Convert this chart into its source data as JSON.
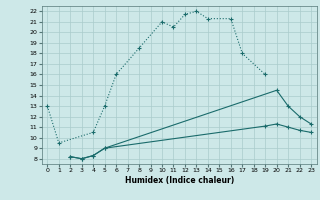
{
  "xlabel": "Humidex (Indice chaleur)",
  "bg_color": "#cde8e8",
  "grid_color": "#aacccc",
  "line_color": "#1a6b6b",
  "xlim": [
    -0.5,
    23.5
  ],
  "ylim": [
    7.5,
    22.5
  ],
  "xticks": [
    0,
    1,
    2,
    3,
    4,
    5,
    6,
    7,
    8,
    9,
    10,
    11,
    12,
    13,
    14,
    15,
    16,
    17,
    18,
    19,
    20,
    21,
    22,
    23
  ],
  "yticks": [
    8,
    9,
    10,
    11,
    12,
    13,
    14,
    15,
    16,
    17,
    18,
    19,
    20,
    21,
    22
  ],
  "curve1_x": [
    0,
    1,
    4,
    5,
    6,
    8,
    10,
    11,
    12,
    13,
    14,
    16,
    17,
    19
  ],
  "curve1_y": [
    13,
    9.5,
    10.5,
    13,
    16,
    18.5,
    21,
    20.5,
    21.7,
    22,
    21.3,
    21.3,
    18,
    16
  ],
  "curve2_x": [
    2,
    3,
    4,
    5,
    20,
    21,
    22,
    23
  ],
  "curve2_y": [
    8.2,
    8.0,
    8.3,
    9.0,
    14.5,
    13.0,
    12.0,
    11.3
  ],
  "curve3_x": [
    2,
    3,
    4,
    5,
    19,
    20,
    21,
    22,
    23
  ],
  "curve3_y": [
    8.2,
    8.0,
    8.3,
    9.0,
    11.1,
    11.3,
    11.0,
    10.7,
    10.5
  ]
}
